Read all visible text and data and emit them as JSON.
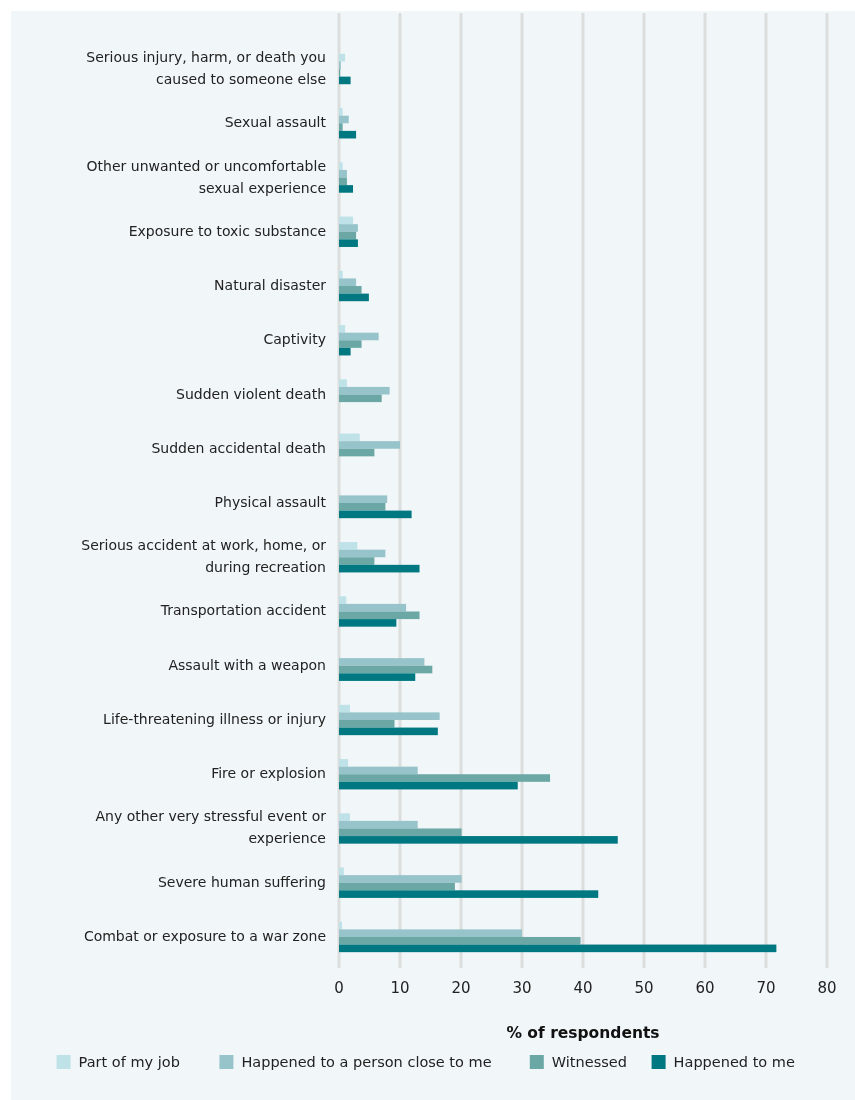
{
  "chart_data": {
    "type": "bar",
    "orientation": "horizontal",
    "xlabel": "% of respondents",
    "categories": [
      "Serious injury, harm, or death you caused to someone else",
      "Sexual assault",
      "Other unwanted or uncomfortable sexual experience",
      "Exposure to toxic substance",
      "Natural disaster",
      "Captivity",
      "Sudden violent death",
      "Sudden accidental death",
      "Physical assault",
      "Serious accident at work, home, or during recreation",
      "Transportation accident",
      "Assault with a weapon",
      "Life-threatening illness or injury",
      "Fire or explosion",
      "Any other very stressful event or experience",
      "Severe human suffering",
      "Combat or exposure to a war zone"
    ],
    "series": [
      {
        "name": "Part of my job",
        "color": "#bfe2e8",
        "values": [
          1.0,
          0.6,
          0.6,
          2.3,
          0.6,
          1.0,
          1.3,
          3.4,
          0,
          3.0,
          1.2,
          0,
          1.8,
          1.5,
          1.8,
          0.8,
          0.5
        ]
      },
      {
        "name": "Happened to a person close to me",
        "color": "#97c3ca",
        "values": [
          0.3,
          1.6,
          1.3,
          3.1,
          2.8,
          6.5,
          8.3,
          10.0,
          7.9,
          7.6,
          11.0,
          14.0,
          16.5,
          12.9,
          12.9,
          20.1,
          30.0
        ]
      },
      {
        "name": "Witnessed",
        "color": "#6ba8a5",
        "values": [
          0.2,
          0.6,
          1.3,
          2.8,
          3.7,
          3.7,
          7.0,
          5.8,
          7.6,
          5.8,
          13.2,
          15.3,
          9.1,
          34.6,
          20.1,
          19.0,
          39.6
        ]
      },
      {
        "name": "Happened to me",
        "color": "#007882",
        "values": [
          1.9,
          2.8,
          2.3,
          3.1,
          4.9,
          1.9,
          0,
          0,
          11.9,
          13.2,
          9.4,
          12.5,
          16.2,
          29.3,
          45.7,
          42.5,
          71.7
        ]
      }
    ],
    "xlim": [
      0,
      80
    ],
    "xticks": [
      0,
      10,
      20,
      30,
      40,
      50,
      60,
      70,
      80
    ],
    "grid": "x",
    "legend": "bottom"
  }
}
